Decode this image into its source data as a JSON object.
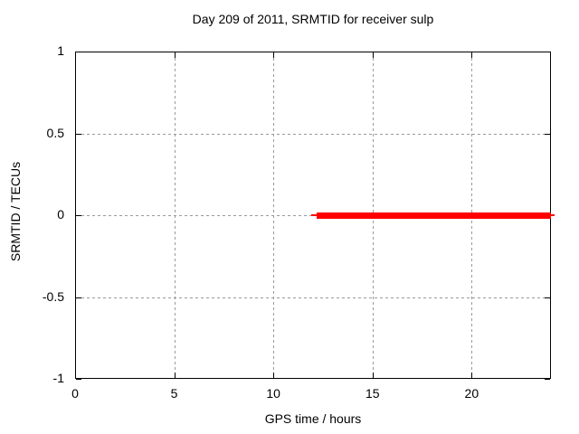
{
  "chart_data": {
    "type": "line",
    "title": "Day 209 of 2011, SRMTID for receiver sulp",
    "xlabel": "GPS time / hours",
    "ylabel": "SRMTID / TECUs",
    "xlim": [
      0,
      24
    ],
    "ylim": [
      -1,
      1
    ],
    "xticks": [
      0,
      5,
      10,
      15,
      20
    ],
    "yticks": [
      1,
      0.5,
      0,
      -0.5,
      -1
    ],
    "xtick_labels": [
      "0",
      "5",
      "10",
      "15",
      "20"
    ],
    "ytick_labels": [
      "1",
      "0.5",
      "0",
      "-0.5",
      "-1"
    ],
    "grid": true,
    "legend_position": "none",
    "series": [
      {
        "name": "SRMTID",
        "color": "#ff0000",
        "style": "thick horizontal line segment at constant value",
        "y_value": 0.0,
        "points": [
          [
            12.0,
            0.0
          ],
          [
            24.0,
            0.0
          ]
        ],
        "thick_extent_x": [
          12.2,
          24.0
        ],
        "thin_extent_x": [
          11.9,
          24.2
        ]
      }
    ],
    "colors": {
      "series": "#ff0000",
      "grid": "#9a9a9a",
      "border": "#000000",
      "text": "#000000",
      "background": "#ffffff"
    }
  }
}
